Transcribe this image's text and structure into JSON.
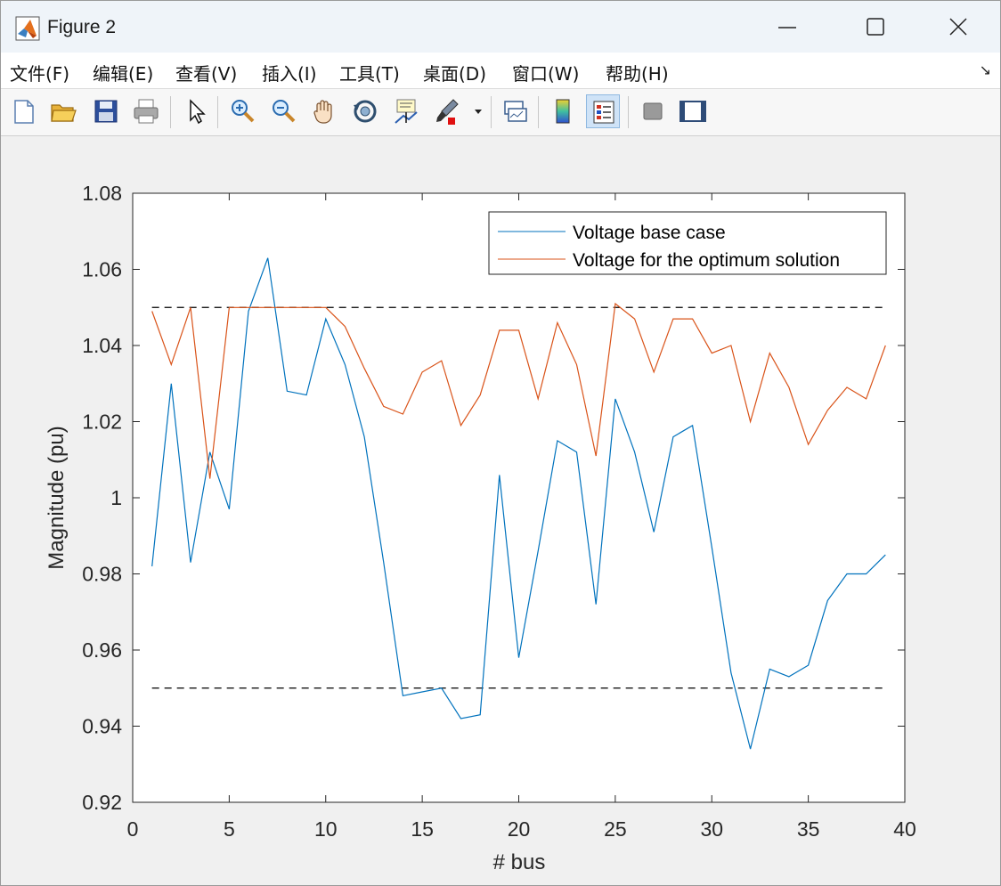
{
  "window": {
    "title": "Figure 2"
  },
  "menubar": {
    "items": [
      {
        "label": "文件(F)"
      },
      {
        "label": "编辑(E)"
      },
      {
        "label": "查看(V)"
      },
      {
        "label": "插入(I)"
      },
      {
        "label": "工具(T)"
      },
      {
        "label": "桌面(D)"
      },
      {
        "label": "窗口(W)"
      },
      {
        "label": "帮助(H)"
      }
    ]
  },
  "toolbar": {
    "buttons": [
      {
        "icon": "new-figure-icon"
      },
      {
        "icon": "open-folder-icon"
      },
      {
        "icon": "save-icon"
      },
      {
        "icon": "print-icon"
      },
      {
        "icon": "pointer-arrow-icon"
      },
      {
        "icon": "zoom-in-icon"
      },
      {
        "icon": "zoom-out-icon"
      },
      {
        "icon": "pan-hand-icon"
      },
      {
        "icon": "rotate-3d-icon"
      },
      {
        "icon": "data-cursor-icon"
      },
      {
        "icon": "brush-icon"
      },
      {
        "icon": "link-plot-icon"
      },
      {
        "icon": "colorbar-icon"
      },
      {
        "icon": "legend-icon"
      },
      {
        "icon": "hide-plot-tools-icon"
      },
      {
        "icon": "show-plot-tools-icon"
      }
    ]
  },
  "colors": {
    "base": "#0072bd",
    "opt": "#d95319",
    "limit": "#000000"
  },
  "chart_data": {
    "type": "line",
    "xlabel": "# bus",
    "ylabel": "Magnitude (pu)",
    "xlim": [
      0,
      40
    ],
    "ylim": [
      0.92,
      1.08
    ],
    "xticks": [
      "0",
      "5",
      "10",
      "15",
      "20",
      "25",
      "30",
      "35",
      "40"
    ],
    "yticks": [
      "0.92",
      "0.94",
      "0.96",
      "0.98",
      "1",
      "1.02",
      "1.04",
      "1.06",
      "1.08"
    ],
    "legend_position": "top-right",
    "x": [
      1,
      2,
      3,
      4,
      5,
      6,
      7,
      8,
      9,
      10,
      11,
      12,
      13,
      14,
      15,
      16,
      17,
      18,
      19,
      20,
      21,
      22,
      23,
      24,
      25,
      26,
      27,
      28,
      29,
      30,
      31,
      32,
      33,
      34,
      35,
      36,
      37,
      38,
      39
    ],
    "series": [
      {
        "name": "Voltage base case",
        "values": [
          0.982,
          1.03,
          0.983,
          1.012,
          0.997,
          1.049,
          1.063,
          1.028,
          1.027,
          1.047,
          1.035,
          1.016,
          0.983,
          0.948,
          0.949,
          0.95,
          0.942,
          0.943,
          1.006,
          0.958,
          0.986,
          1.015,
          1.012,
          0.972,
          1.026,
          1.012,
          0.991,
          1.016,
          1.019,
          0.987,
          0.954,
          0.934,
          0.955,
          0.953,
          0.956,
          0.973,
          0.98,
          0.98,
          0.985
        ]
      },
      {
        "name": "Voltage for the optimum solution",
        "values": [
          1.049,
          1.035,
          1.05,
          1.005,
          1.05,
          1.05,
          1.05,
          1.05,
          1.05,
          1.05,
          1.045,
          1.034,
          1.024,
          1.022,
          1.033,
          1.036,
          1.019,
          1.027,
          1.044,
          1.044,
          1.026,
          1.046,
          1.035,
          1.011,
          1.051,
          1.047,
          1.033,
          1.047,
          1.047,
          1.038,
          1.04,
          1.02,
          1.038,
          1.029,
          1.014,
          1.023,
          1.029,
          1.026,
          1.04
        ]
      }
    ],
    "reference_lines": [
      0.95,
      1.05
    ]
  }
}
